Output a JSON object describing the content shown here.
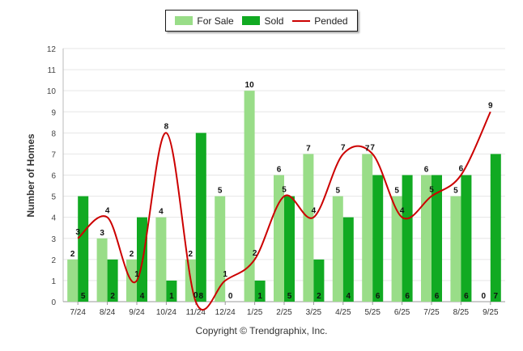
{
  "chart_data": {
    "type": "bar",
    "categories": [
      "7/24",
      "8/24",
      "9/24",
      "10/24",
      "11/24",
      "12/24",
      "1/25",
      "2/25",
      "3/25",
      "4/25",
      "5/25",
      "6/25",
      "7/25",
      "8/25",
      "9/25"
    ],
    "series": [
      {
        "name": "For Sale",
        "type": "bar",
        "color": "#99dd88",
        "values": [
          2,
          3,
          2,
          4,
          2,
          5,
          10,
          6,
          7,
          5,
          7,
          5,
          6,
          5,
          0
        ]
      },
      {
        "name": "Sold",
        "type": "bar",
        "color": "#11aa22",
        "values": [
          5,
          2,
          4,
          1,
          8,
          0,
          1,
          5,
          2,
          4,
          6,
          6,
          6,
          6,
          7
        ]
      },
      {
        "name": "Pended",
        "type": "line",
        "color": "#cc0000",
        "values": [
          3,
          4,
          1,
          8,
          0,
          1,
          2,
          5,
          4,
          7,
          7,
          4,
          5,
          6,
          9
        ]
      }
    ],
    "ylabel": "Number of Homes",
    "ylim": [
      0,
      12
    ],
    "yticks": [
      0,
      1,
      2,
      3,
      4,
      5,
      6,
      7,
      8,
      9,
      10,
      11,
      12
    ],
    "legend_position": "top-center",
    "grid": true
  },
  "legend": {
    "for_sale": "For Sale",
    "sold": "Sold",
    "pended": "Pended",
    "colors": {
      "for_sale": "#99dd88",
      "sold": "#11aa22",
      "pended": "#cc0000"
    }
  },
  "footer": {
    "copyright": "Copyright © Trendgraphix, Inc."
  }
}
